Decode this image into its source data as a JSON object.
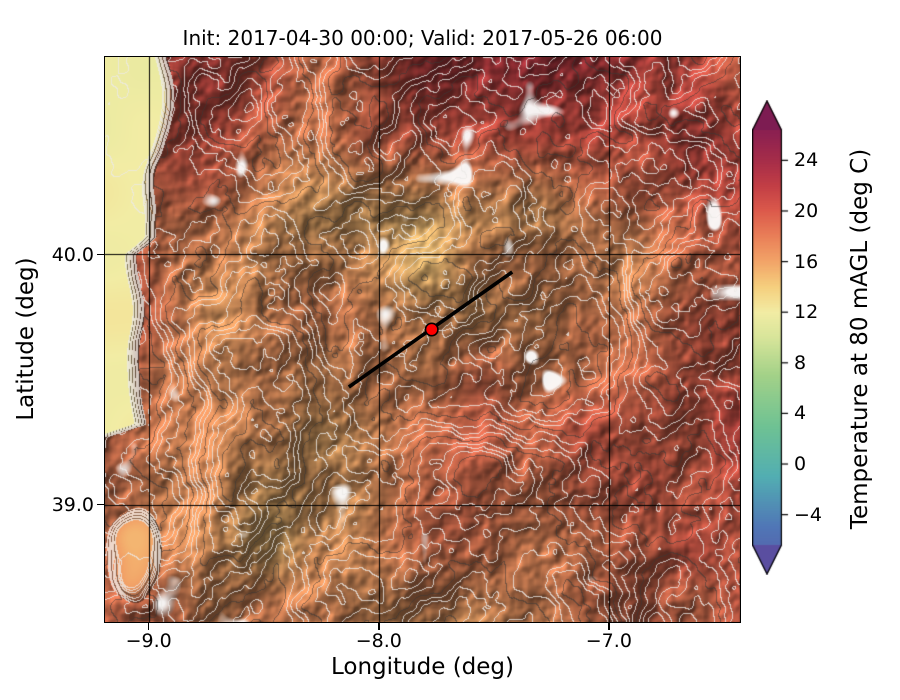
{
  "chart_data": {
    "type": "heatmap",
    "title": "Init: 2017-04-30 00:00; Valid: 2017-05-26 06:00",
    "xlabel": "Longitude (deg)",
    "ylabel": "Latitude (deg)",
    "xlim": [
      -9.19,
      -6.43
    ],
    "ylim": [
      38.53,
      40.79
    ],
    "xticks": [
      -9.0,
      -8.0,
      -7.0
    ],
    "xtick_labels": [
      "−9.0",
      "−8.0",
      "−7.0"
    ],
    "yticks": [
      40.0,
      39.0
    ],
    "ytick_labels": [
      "40.0",
      "39.0"
    ],
    "grid": true,
    "grid_color": "#000000",
    "colorbar": {
      "label": "Temperature at 80 mAGL (deg C)",
      "ticks": [
        24,
        20,
        16,
        12,
        8,
        4,
        0,
        -4
      ],
      "tick_labels": [
        "24",
        "20",
        "16",
        "12",
        "8",
        "4",
        "0",
        "−4"
      ],
      "vmin": -6.4,
      "vmax": 26.4,
      "extend": "both",
      "colormap_stops": [
        [
          -10,
          "#5a4ea0"
        ],
        [
          -5,
          "#5076b6"
        ],
        [
          -1,
          "#52aeb2"
        ],
        [
          3,
          "#6fc293"
        ],
        [
          7,
          "#a3d188"
        ],
        [
          10,
          "#d8e59a"
        ],
        [
          12,
          "#f2eca4"
        ],
        [
          14,
          "#f5cf7e"
        ],
        [
          16,
          "#f2a468"
        ],
        [
          18,
          "#e97f58"
        ],
        [
          20,
          "#dc5a4b"
        ],
        [
          22,
          "#c23e45"
        ],
        [
          24,
          "#a62d49"
        ],
        [
          26,
          "#8e2150"
        ],
        [
          28,
          "#7d1c52"
        ]
      ]
    },
    "overlays": {
      "cross_section_line": {
        "start_lonlat": [
          -8.13,
          39.47
        ],
        "end_lonlat": [
          -7.42,
          39.93
        ],
        "color": "#000000"
      },
      "marker": {
        "lonlat": [
          -7.77,
          39.7
        ],
        "color": "#ff0000",
        "edge": "#000000"
      }
    },
    "field": {
      "coastal_temp_c": 11.3,
      "estuary_temp_c": 15.2,
      "inland_temp_min_c": 13.5,
      "inland_temp_max_c": 23.0,
      "north_band_extra_c": 2.0,
      "contour_color": "#ffffff",
      "description": "Terrain-shaded 80 m AGL temperature map; pale-yellow cooler Atlantic coastal strip in the west, warm reddish-brown interior with dense white elevation contour lines and black lat/lon gridlines."
    }
  }
}
